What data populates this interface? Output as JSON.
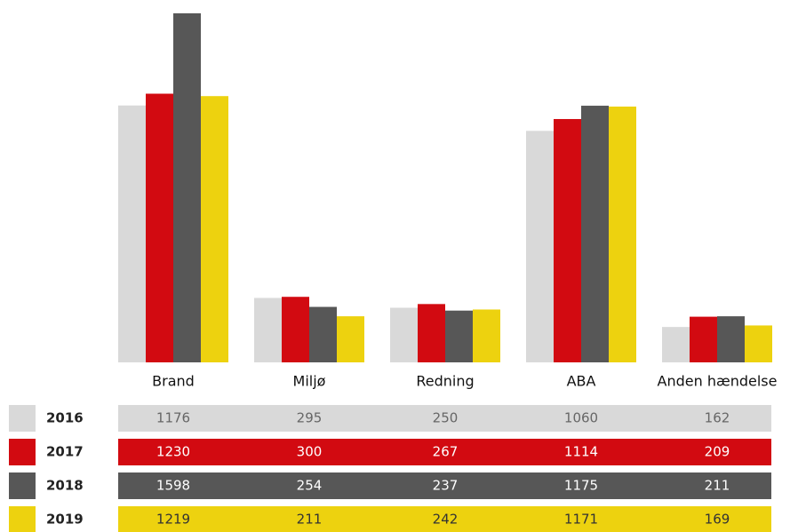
{
  "chart_data": {
    "type": "bar",
    "categories": [
      "Brand",
      "Miljø",
      "Redning",
      "ABA",
      "Anden hændelse"
    ],
    "series": [
      {
        "name": "2016",
        "color": "#d9d9d9",
        "values": [
          1176,
          295,
          250,
          1060,
          162
        ]
      },
      {
        "name": "2017",
        "color": "#d20a11",
        "values": [
          1230,
          300,
          267,
          1114,
          209
        ]
      },
      {
        "name": "2018",
        "color": "#575757",
        "values": [
          1598,
          254,
          237,
          1175,
          211
        ]
      },
      {
        "name": "2019",
        "color": "#edd20f",
        "values": [
          1219,
          211,
          242,
          1171,
          169
        ]
      }
    ]
  }
}
